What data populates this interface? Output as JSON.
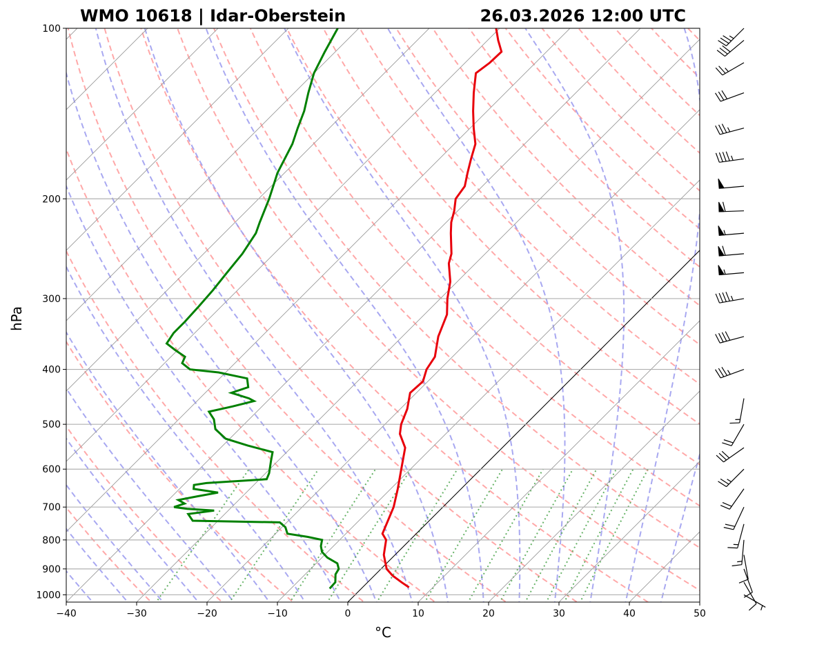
{
  "chart_data": {
    "type": "skew-t",
    "title_left": "WMO 10618 | Idar-Oberstein",
    "title_right": "26.03.2026 12:00 UTC",
    "xlabel": "°C",
    "ylabel": "hPa",
    "xlim": [
      -40,
      50
    ],
    "ylim": [
      1030,
      100
    ],
    "x_ticks": [
      -40,
      -30,
      -20,
      -10,
      0,
      10,
      20,
      30,
      40,
      50
    ],
    "x_tick_labels": [
      "−40",
      "−30",
      "−20",
      "−10",
      "0",
      "10",
      "20",
      "30",
      "40",
      "50"
    ],
    "y_ticks": [
      100,
      200,
      300,
      400,
      500,
      600,
      700,
      800,
      900,
      1000
    ],
    "y_tick_labels": [
      "100",
      "200",
      "300",
      "400",
      "500",
      "600",
      "700",
      "800",
      "900",
      "1000"
    ],
    "colors": {
      "temperature": "#e8000b",
      "dewpoint": "#008000",
      "dry_adiabat": "#ff9999",
      "moist_adiabat": "#9999ee",
      "mixing_ratio": "#55aa55",
      "isotherm": "#999999",
      "zero_isotherm": "#000000",
      "grid": "#b0b0b0"
    },
    "series": [
      {
        "name": "temperature",
        "points": [
          [
            970,
            6.6
          ],
          [
            950,
            4.8
          ],
          [
            925,
            2.6
          ],
          [
            900,
            0.8
          ],
          [
            850,
            -1.6
          ],
          [
            800,
            -3.4
          ],
          [
            780,
            -4.8
          ],
          [
            750,
            -5.6
          ],
          [
            700,
            -7.0
          ],
          [
            650,
            -9.0
          ],
          [
            600,
            -11.3
          ],
          [
            550,
            -13.8
          ],
          [
            520,
            -16.5
          ],
          [
            500,
            -17.7
          ],
          [
            470,
            -19.0
          ],
          [
            440,
            -20.9
          ],
          [
            420,
            -20.7
          ],
          [
            400,
            -21.9
          ],
          [
            380,
            -22.5
          ],
          [
            350,
            -24.9
          ],
          [
            320,
            -26.8
          ],
          [
            300,
            -29.0
          ],
          [
            280,
            -31.0
          ],
          [
            260,
            -33.8
          ],
          [
            250,
            -34.8
          ],
          [
            230,
            -37.8
          ],
          [
            220,
            -39.3
          ],
          [
            210,
            -40.5
          ],
          [
            200,
            -42.0
          ],
          [
            190,
            -42.5
          ],
          [
            180,
            -44.0
          ],
          [
            170,
            -45.5
          ],
          [
            160,
            -47.0
          ],
          [
            150,
            -49.5
          ],
          [
            140,
            -52.0
          ],
          [
            130,
            -54.5
          ],
          [
            120,
            -57.0
          ],
          [
            115,
            -56.5
          ],
          [
            110,
            -56.4
          ],
          [
            105,
            -58.5
          ],
          [
            100,
            -60.5
          ]
        ]
      },
      {
        "name": "dewpoint",
        "points": [
          [
            975,
            -4.5
          ],
          [
            950,
            -4.6
          ],
          [
            920,
            -5.7
          ],
          [
            900,
            -6.0
          ],
          [
            880,
            -7.0
          ],
          [
            860,
            -9.2
          ],
          [
            840,
            -10.8
          ],
          [
            820,
            -11.8
          ],
          [
            800,
            -12.5
          ],
          [
            790,
            -15.0
          ],
          [
            780,
            -18.3
          ],
          [
            760,
            -19.5
          ],
          [
            745,
            -21.0
          ],
          [
            740,
            -33.6
          ],
          [
            720,
            -35.2
          ],
          [
            710,
            -32.0
          ],
          [
            705,
            -36.1
          ],
          [
            700,
            -38.2
          ],
          [
            690,
            -37.2
          ],
          [
            680,
            -38.6
          ],
          [
            670,
            -36.4
          ],
          [
            660,
            -34.0
          ],
          [
            655,
            -36.0
          ],
          [
            650,
            -38.0
          ],
          [
            640,
            -38.5
          ],
          [
            635,
            -37.0
          ],
          [
            625,
            -29.0
          ],
          [
            610,
            -29.5
          ],
          [
            580,
            -31.0
          ],
          [
            560,
            -32.0
          ],
          [
            545,
            -36.5
          ],
          [
            530,
            -40.6
          ],
          [
            510,
            -43.4
          ],
          [
            490,
            -45.0
          ],
          [
            475,
            -46.8
          ],
          [
            465,
            -44.2
          ],
          [
            455,
            -41.9
          ],
          [
            450,
            -43.0
          ],
          [
            440,
            -46.3
          ],
          [
            430,
            -44.7
          ],
          [
            415,
            -46.1
          ],
          [
            405,
            -51.0
          ],
          [
            400,
            -55.5
          ],
          [
            390,
            -57.5
          ],
          [
            380,
            -58.0
          ],
          [
            370,
            -60.3
          ],
          [
            360,
            -62.5
          ],
          [
            345,
            -63.0
          ],
          [
            330,
            -63.0
          ],
          [
            310,
            -63.2
          ],
          [
            290,
            -63.5
          ],
          [
            270,
            -64.0
          ],
          [
            250,
            -64.5
          ],
          [
            230,
            -65.5
          ],
          [
            220,
            -66.5
          ],
          [
            200,
            -68.5
          ],
          [
            180,
            -71.0
          ],
          [
            160,
            -73.0
          ],
          [
            150,
            -74.5
          ],
          [
            140,
            -76.0
          ],
          [
            130,
            -78.0
          ],
          [
            120,
            -80.0
          ],
          [
            110,
            -81.5
          ],
          [
            100,
            -83.0
          ]
        ]
      }
    ],
    "wind_barbs": [
      {
        "p": 1000,
        "ws_kt": 5,
        "wd": 120
      },
      {
        "p": 950,
        "ws_kt": 10,
        "wd": 150
      },
      {
        "p": 900,
        "ws_kt": 10,
        "wd": 160
      },
      {
        "p": 850,
        "ws_kt": 10,
        "wd": 170
      },
      {
        "p": 800,
        "ws_kt": 15,
        "wd": 185
      },
      {
        "p": 750,
        "ws_kt": 15,
        "wd": 195
      },
      {
        "p": 700,
        "ws_kt": 20,
        "wd": 205
      },
      {
        "p": 650,
        "ws_kt": 20,
        "wd": 215
      },
      {
        "p": 600,
        "ws_kt": 25,
        "wd": 225
      },
      {
        "p": 550,
        "ws_kt": 30,
        "wd": 235
      },
      {
        "p": 500,
        "ws_kt": 20,
        "wd": 210
      },
      {
        "p": 450,
        "ws_kt": 15,
        "wd": 190
      },
      {
        "p": 400,
        "ws_kt": 35,
        "wd": 250
      },
      {
        "p": 350,
        "ws_kt": 40,
        "wd": 255
      },
      {
        "p": 300,
        "ws_kt": 45,
        "wd": 260
      },
      {
        "p": 270,
        "ws_kt": 55,
        "wd": 265
      },
      {
        "p": 250,
        "ws_kt": 60,
        "wd": 265
      },
      {
        "p": 230,
        "ws_kt": 55,
        "wd": 265
      },
      {
        "p": 210,
        "ws_kt": 60,
        "wd": 268
      },
      {
        "p": 190,
        "ws_kt": 50,
        "wd": 265
      },
      {
        "p": 170,
        "ws_kt": 45,
        "wd": 262
      },
      {
        "p": 150,
        "ws_kt": 35,
        "wd": 255
      },
      {
        "p": 130,
        "ws_kt": 30,
        "wd": 250
      },
      {
        "p": 115,
        "ws_kt": 25,
        "wd": 240
      },
      {
        "p": 105,
        "ws_kt": 30,
        "wd": 230
      },
      {
        "p": 100,
        "ws_kt": 35,
        "wd": 225
      }
    ],
    "legend": "none"
  }
}
